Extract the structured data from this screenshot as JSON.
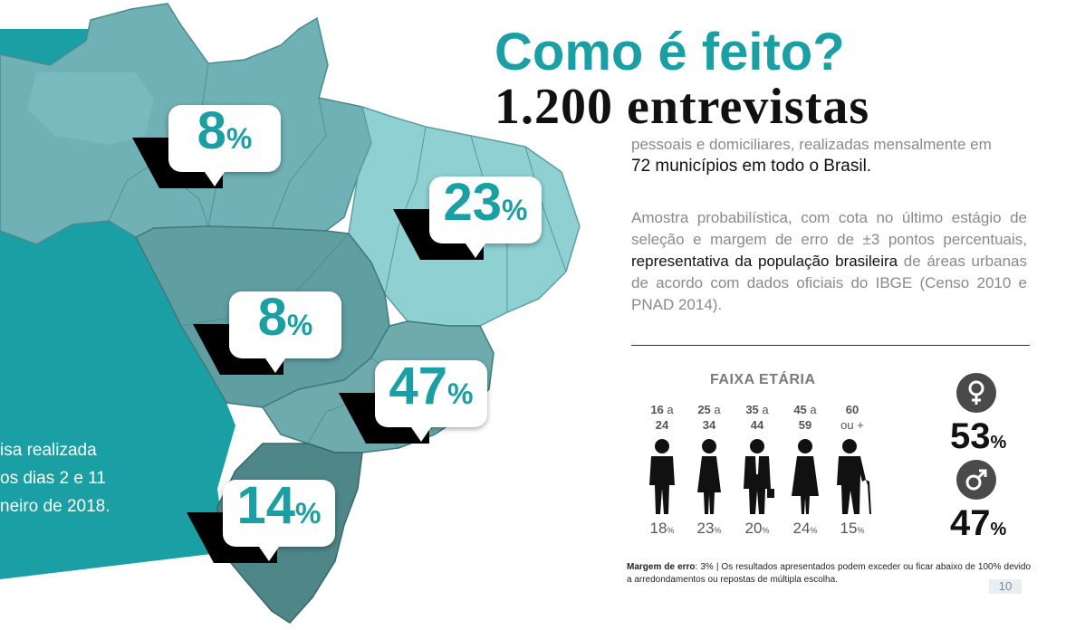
{
  "title": "Como é feito?",
  "subtitle": "1.200 entrevistas",
  "desc1": {
    "gray": "pessoais e domiciliares, realizadas mensalmente em",
    "dark": "72 municípios em todo o Brasil."
  },
  "desc2": {
    "part1": "Amostra probabilística, com cota no último estágio de seleção e margem de erro de ±3 pontos percentuais, ",
    "bold": "representativa da população brasileira",
    "part2": " de áreas urbanas de acordo com dados oficiais do IBGE (Censo 2010 e PNAD 2014)."
  },
  "pesquisa_lines": [
    "isa realizada",
    "os dias  2 e 11",
    "neiro de 2018."
  ],
  "regions": [
    {
      "name": "norte",
      "value": "8",
      "pct": "%"
    },
    {
      "name": "nordeste",
      "value": "23",
      "pct": "%"
    },
    {
      "name": "centro-oeste",
      "value": "8",
      "pct": "%"
    },
    {
      "name": "sudeste",
      "value": "47",
      "pct": "%"
    },
    {
      "name": "sul",
      "value": "14",
      "pct": "%"
    }
  ],
  "faixa_etaria": {
    "title": "FAIXA ETÁRIA",
    "groups": [
      {
        "from": "16",
        "sep": "a",
        "to": "24",
        "value": "18",
        "pct": "%"
      },
      {
        "from": "25",
        "sep": "a",
        "to": "34",
        "value": "23",
        "pct": "%"
      },
      {
        "from": "35",
        "sep": "a",
        "to": "44",
        "value": "20",
        "pct": "%"
      },
      {
        "from": "45",
        "sep": "a",
        "to": "59",
        "value": "24",
        "pct": "%"
      },
      {
        "from": "60",
        "sep": "",
        "to": "ou +",
        "value": "15",
        "pct": "%"
      }
    ]
  },
  "gender": {
    "female": {
      "icon": "female-icon",
      "value": "53",
      "pct": "%"
    },
    "male": {
      "icon": "male-icon",
      "value": "47",
      "pct": "%"
    }
  },
  "note": {
    "label": "Margem de erro",
    "text": ": 3% | Os resultados apresentados podem exceder ou ficar abaixo de 100% devido a arredondamentos ou repostas de múltipla escolha."
  },
  "page_number": "10",
  "colors": {
    "teal": "#1aa0a4",
    "map_light": "#8fd0d2",
    "map_mid": "#6fb1b4",
    "map_dark": "#4f8688"
  }
}
